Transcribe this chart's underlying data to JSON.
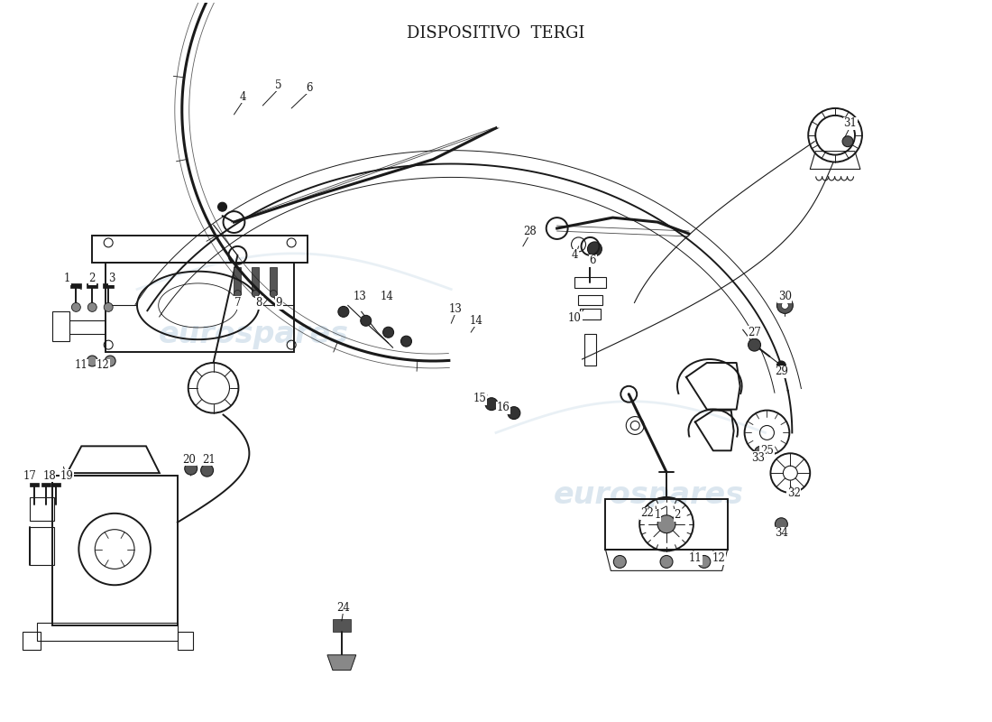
{
  "title": "DISPOSITIVO  TERGI",
  "title_fontsize": 13,
  "bg_color": "#ffffff",
  "line_color": "#1a1a1a",
  "watermark_text": "eurospares",
  "watermark_color": "#b8cfe0",
  "watermark_alpha": 0.5
}
